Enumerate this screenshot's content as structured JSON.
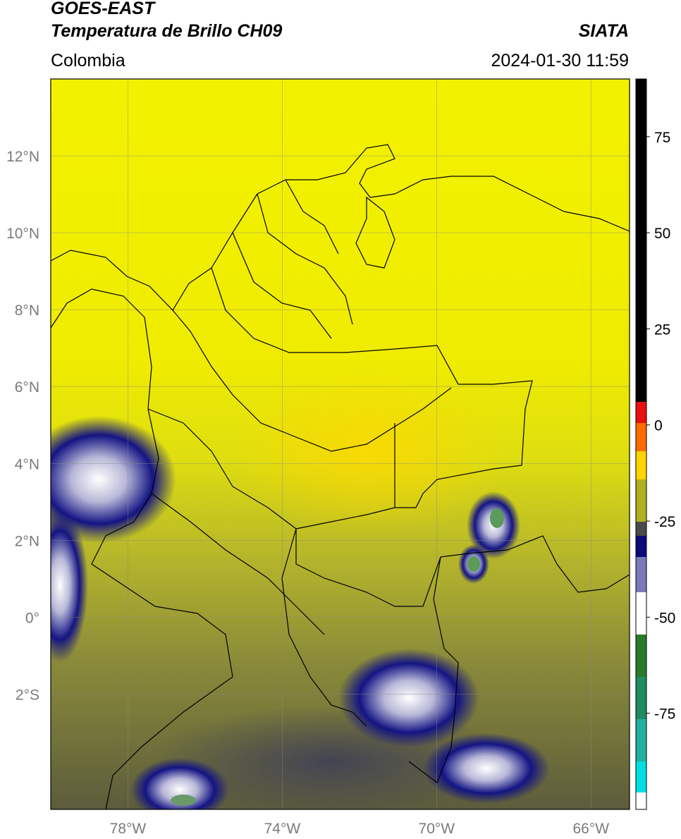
{
  "header": {
    "satellite": "GOES-EAST",
    "product": "Temperatura de Brillo CH09",
    "region": "Colombia",
    "agency": "SIATA",
    "datetime": "2024-01-30 11:59"
  },
  "map": {
    "lat_labels": [
      "12°N",
      "10°N",
      "8°N",
      "6°N",
      "4°N",
      "2°N",
      "0°",
      "2°S"
    ],
    "lon_labels": [
      "78°W",
      "74°W",
      "70°W",
      "66°W"
    ],
    "lat_values": [
      12,
      10,
      8,
      6,
      4,
      2,
      0,
      -2
    ],
    "lon_values": [
      -78,
      -74,
      -70,
      -66
    ],
    "lat_range": [
      -5.0,
      14.0
    ],
    "lon_range": [
      -80.0,
      -65.0
    ]
  },
  "colorbar": {
    "tick_labels": [
      "75",
      "50",
      "25",
      "0",
      "-25",
      "-50",
      "-75"
    ],
    "tick_values": [
      75,
      50,
      25,
      0,
      -25,
      -50,
      -75
    ],
    "range": [
      -100,
      90
    ],
    "colors": {
      "warm_top": "#000000",
      "red": "#e81010",
      "orange": "#ff8c00",
      "yellow": "#ffff00",
      "olive": "#6a6a38",
      "navy": "#0a0a7a",
      "white": "#ffffff",
      "green": "#2a7a2a",
      "teal": "#20b0a0",
      "cyan": "#00e0e0"
    }
  }
}
